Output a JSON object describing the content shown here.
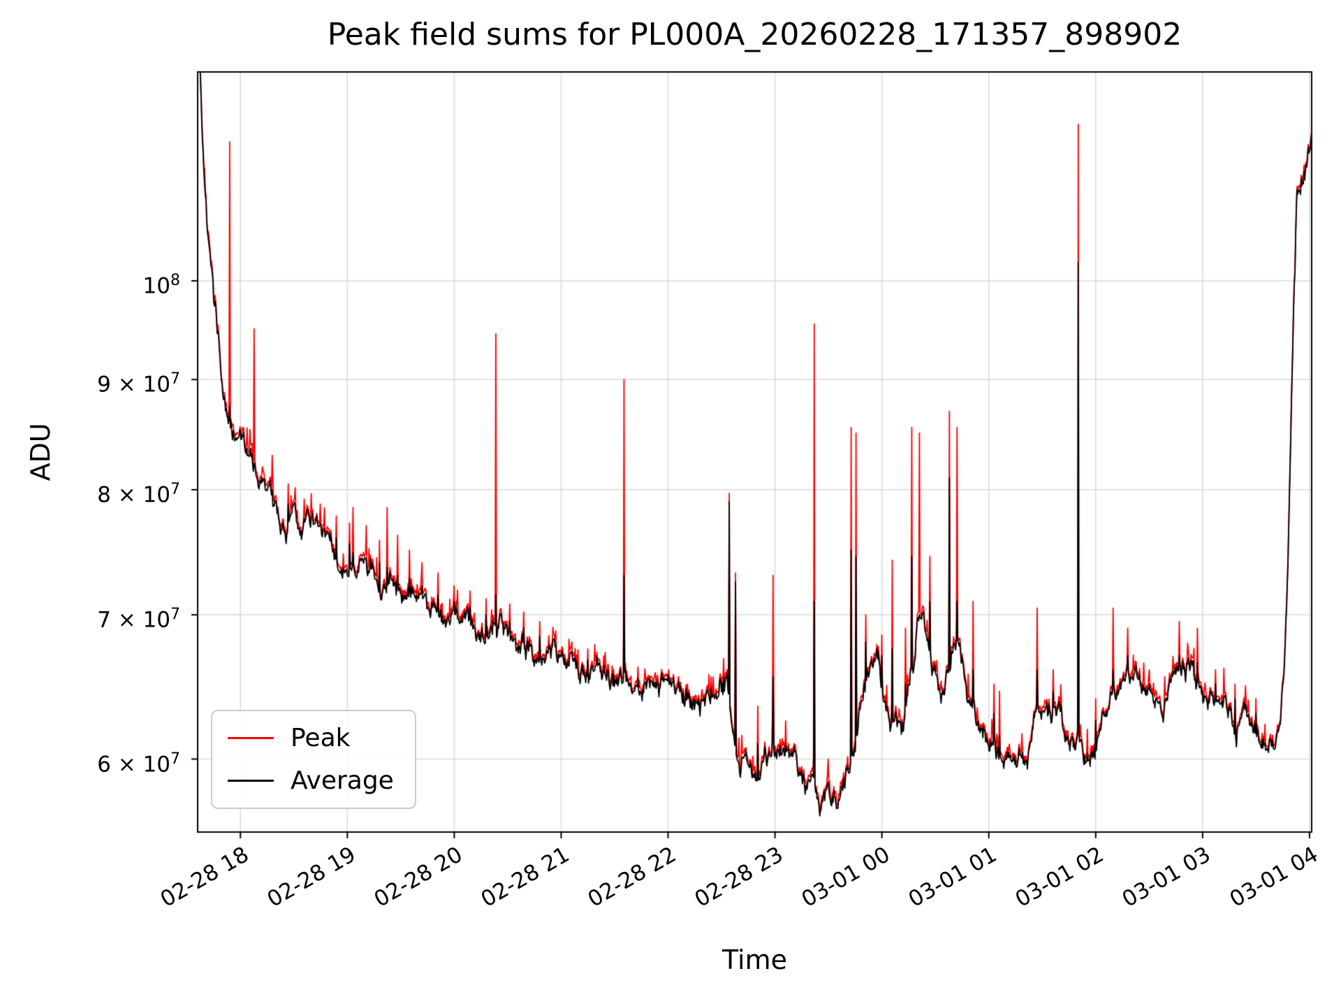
{
  "chart_data": {
    "type": "line",
    "title": "Peak field sums for PL000A_20260228_171357_898902",
    "xlabel": "Time",
    "ylabel": "ADU",
    "yscale": "log",
    "grid": true,
    "xlim": [
      17.6,
      28.02
    ],
    "ylim": [
      55500000.0,
      125000000.0
    ],
    "grid_color": "#d9d9d9",
    "series_colors": {
      "peak": "#ff0000",
      "average": "#000000"
    },
    "legend": {
      "position": "lower left",
      "entries": [
        {
          "name": "Peak",
          "color": "#ff0000"
        },
        {
          "name": "Average",
          "color": "#000000"
        }
      ]
    },
    "x_ticks": [
      {
        "v": 18,
        "label": "02-28 18"
      },
      {
        "v": 19,
        "label": "02-28 19"
      },
      {
        "v": 20,
        "label": "02-28 20"
      },
      {
        "v": 21,
        "label": "02-28 21"
      },
      {
        "v": 22,
        "label": "02-28 22"
      },
      {
        "v": 23,
        "label": "02-28 23"
      },
      {
        "v": 24,
        "label": "03-01 00"
      },
      {
        "v": 25,
        "label": "03-01 01"
      },
      {
        "v": 26,
        "label": "03-01 02"
      },
      {
        "v": 27,
        "label": "03-01 03"
      },
      {
        "v": 28,
        "label": "03-01 04"
      }
    ],
    "y_ticks": [
      {
        "v": 60000000.0,
        "base": "6 × 10",
        "exp": "7"
      },
      {
        "v": 70000000.0,
        "base": "7 × 10",
        "exp": "7"
      },
      {
        "v": 80000000.0,
        "base": "8 × 10",
        "exp": "7"
      },
      {
        "v": 90000000.0,
        "base": "9 × 10",
        "exp": "7"
      },
      {
        "v": 100000000.0,
        "base": "10",
        "exp": "8"
      }
    ],
    "average_anchors": [
      [
        17.6,
        135000000.0
      ],
      [
        17.63,
        123000000.0
      ],
      [
        17.66,
        113000000.0
      ],
      [
        17.7,
        105000000.0
      ],
      [
        17.75,
        98000000.0
      ],
      [
        17.81,
        92500000.0
      ],
      [
        17.88,
        87500000.0
      ],
      [
        17.96,
        84500000.0
      ],
      [
        18.05,
        82200000.0
      ],
      [
        18.15,
        80500000.0
      ],
      [
        18.27,
        79300000.0
      ],
      [
        18.39,
        78200000.0
      ],
      [
        18.52,
        77300000.0
      ],
      [
        18.66,
        76400000.0
      ],
      [
        18.8,
        75600000.0
      ],
      [
        18.94,
        74800000.0
      ],
      [
        19.08,
        74100000.0
      ],
      [
        19.22,
        73500000.0
      ],
      [
        19.36,
        72900000.0
      ],
      [
        19.51,
        72200000.0
      ],
      [
        19.66,
        71500000.0
      ],
      [
        19.81,
        70900000.0
      ],
      [
        19.96,
        70400000.0
      ],
      [
        20.11,
        69900000.0
      ],
      [
        20.26,
        69600000.0
      ],
      [
        20.41,
        69100000.0
      ],
      [
        20.56,
        68700000.0
      ],
      [
        20.71,
        68200000.0
      ],
      [
        20.86,
        67600000.0
      ],
      [
        21.01,
        67100000.0
      ],
      [
        21.16,
        66600000.0
      ],
      [
        21.31,
        66200000.0
      ],
      [
        21.46,
        65800000.0
      ],
      [
        21.61,
        65400000.0
      ],
      [
        21.76,
        65000000.0
      ],
      [
        21.91,
        64700000.0
      ],
      [
        22.06,
        64300000.0
      ],
      [
        22.21,
        64000000.0
      ],
      [
        22.34,
        63900000.0
      ],
      [
        22.45,
        64300000.0
      ],
      [
        22.55,
        64900000.0
      ],
      [
        22.61,
        63200000.0
      ],
      [
        22.67,
        60300000.0
      ],
      [
        22.75,
        59300000.0
      ],
      [
        22.85,
        59600000.0
      ],
      [
        22.94,
        60300000.0
      ],
      [
        23.0,
        60900000.0
      ],
      [
        23.06,
        60200000.0
      ],
      [
        23.13,
        59600000.0
      ],
      [
        23.21,
        58900000.0
      ],
      [
        23.29,
        58200000.0
      ],
      [
        23.38,
        57700000.0
      ],
      [
        23.47,
        57200000.0
      ],
      [
        23.55,
        57000000.0
      ],
      [
        23.63,
        57700000.0
      ],
      [
        23.69,
        59300000.0
      ],
      [
        23.75,
        61800000.0
      ],
      [
        23.81,
        64800000.0
      ],
      [
        23.89,
        66300000.0
      ],
      [
        23.97,
        65800000.0
      ],
      [
        24.05,
        64500000.0
      ],
      [
        24.13,
        62800000.0
      ],
      [
        24.19,
        61900000.0
      ],
      [
        24.26,
        64300000.0
      ],
      [
        24.33,
        68800000.0
      ],
      [
        24.39,
        69300000.0
      ],
      [
        24.47,
        66300000.0
      ],
      [
        24.55,
        64900000.0
      ],
      [
        24.61,
        65900000.0
      ],
      [
        24.67,
        68300000.0
      ],
      [
        24.73,
        66800000.0
      ],
      [
        24.81,
        64300000.0
      ],
      [
        24.91,
        62600000.0
      ],
      [
        25.01,
        61100000.0
      ],
      [
        25.13,
        60100000.0
      ],
      [
        25.23,
        59700000.0
      ],
      [
        25.33,
        61100000.0
      ],
      [
        25.43,
        62700000.0
      ],
      [
        25.51,
        63400000.0
      ],
      [
        25.59,
        62700000.0
      ],
      [
        25.69,
        61300000.0
      ],
      [
        25.79,
        60400000.0
      ],
      [
        25.87,
        59900000.0
      ],
      [
        25.96,
        60700000.0
      ],
      [
        26.05,
        61900000.0
      ],
      [
        26.13,
        63700000.0
      ],
      [
        26.21,
        65100000.0
      ],
      [
        26.31,
        65400000.0
      ],
      [
        26.41,
        64700000.0
      ],
      [
        26.51,
        63900000.0
      ],
      [
        26.59,
        63100000.0
      ],
      [
        26.67,
        62900000.0
      ],
      [
        26.75,
        64700000.0
      ],
      [
        26.83,
        65900000.0
      ],
      [
        26.91,
        65700000.0
      ],
      [
        27.01,
        64900000.0
      ],
      [
        27.11,
        64100000.0
      ],
      [
        27.21,
        63500000.0
      ],
      [
        27.33,
        62900000.0
      ],
      [
        27.45,
        62100000.0
      ],
      [
        27.57,
        61500000.0
      ],
      [
        27.65,
        61300000.0
      ],
      [
        27.71,
        62100000.0
      ],
      [
        27.76,
        65400000.0
      ],
      [
        27.8,
        74000000.0
      ],
      [
        27.84,
        93000000.0
      ],
      [
        27.88,
        109000000.0
      ],
      [
        27.92,
        113000000.0
      ],
      [
        27.97,
        114000000.0
      ],
      [
        28.02,
        117000000.0
      ]
    ],
    "spikes": [
      [
        17.9,
        116000000.0,
        87500000.0
      ],
      [
        18.13,
        95000000.0,
        81000000.0
      ],
      [
        18.3,
        83000000.0,
        80000000.0
      ],
      [
        18.45,
        80500000.0,
        78800000.0
      ],
      [
        18.6,
        79200000.0,
        77600000.0
      ],
      [
        18.75,
        78800000.0,
        76800000.0
      ],
      [
        18.9,
        77800000.0,
        76000000.0
      ],
      [
        19.02,
        77200000.0,
        75500000.0
      ],
      [
        19.05,
        78500000.0,
        74800000.0
      ],
      [
        19.18,
        77000000.0,
        74200000.0
      ],
      [
        19.3,
        75800000.0,
        74000000.0
      ],
      [
        19.37,
        78500000.0,
        73600000.0
      ],
      [
        19.47,
        76200000.0,
        73000000.0
      ],
      [
        19.58,
        75000000.0,
        72800000.0
      ],
      [
        19.7,
        74000000.0,
        72200000.0
      ],
      [
        19.85,
        73200000.0,
        71500000.0
      ],
      [
        20.0,
        72200000.0,
        71000000.0
      ],
      [
        20.15,
        71800000.0,
        70600000.0
      ],
      [
        20.3,
        71200000.0,
        70000000.0
      ],
      [
        20.39,
        94500000.0,
        71500000.0
      ],
      [
        20.52,
        70800000.0,
        69500000.0
      ],
      [
        20.65,
        70200000.0,
        69000000.0
      ],
      [
        20.8,
        69500000.0,
        68400000.0
      ],
      [
        20.95,
        68800000.0,
        67800000.0
      ],
      [
        21.1,
        68000000.0,
        67200000.0
      ],
      [
        21.25,
        67500000.0,
        66700000.0
      ],
      [
        21.4,
        67000000.0,
        66300000.0
      ],
      [
        21.59,
        90000000.0,
        73000000.0
      ],
      [
        21.72,
        66200000.0,
        65400000.0
      ],
      [
        21.88,
        65800000.0,
        65000000.0
      ],
      [
        22.03,
        65200000.0,
        64600000.0
      ],
      [
        22.18,
        65000000.0,
        64400000.0
      ],
      [
        22.4,
        65500000.0,
        64700000.0
      ],
      [
        22.52,
        66800000.0,
        65500000.0
      ],
      [
        22.57,
        79700000.0,
        79000000.0
      ],
      [
        22.63,
        73200000.0,
        72500000.0
      ],
      [
        22.84,
        63500000.0,
        61000000.0
      ],
      [
        22.98,
        73000000.0,
        65500000.0
      ],
      [
        23.1,
        62500000.0,
        61000000.0
      ],
      [
        23.37,
        95500000.0,
        71000000.0
      ],
      [
        23.5,
        60000000.0,
        58500000.0
      ],
      [
        23.71,
        85500000.0,
        75000000.0
      ],
      [
        23.76,
        85000000.0,
        74500000.0
      ],
      [
        23.85,
        70000000.0,
        68000000.0
      ],
      [
        24.0,
        68500000.0,
        67000000.0
      ],
      [
        24.1,
        74200000.0,
        67500000.0
      ],
      [
        24.22,
        69000000.0,
        65000000.0
      ],
      [
        24.28,
        85500000.0,
        74500000.0
      ],
      [
        24.35,
        85000000.0,
        70000000.0
      ],
      [
        24.45,
        74500000.0,
        71000000.0
      ],
      [
        24.63,
        87000000.0,
        81000000.0
      ],
      [
        24.7,
        85500000.0,
        71000000.0
      ],
      [
        24.85,
        71000000.0,
        66000000.0
      ],
      [
        25.05,
        65000000.0,
        63000000.0
      ],
      [
        25.1,
        64500000.0,
        61500000.0
      ],
      [
        25.45,
        70500000.0,
        66000000.0
      ],
      [
        25.6,
        66000000.0,
        64500000.0
      ],
      [
        25.84,
        118200000.0,
        102000000.0
      ],
      [
        26.0,
        64000000.0,
        62500000.0
      ],
      [
        26.16,
        70500000.0,
        66000000.0
      ],
      [
        26.3,
        69000000.0,
        67000000.0
      ],
      [
        26.5,
        66000000.0,
        65000000.0
      ],
      [
        26.78,
        69500000.0,
        67000000.0
      ],
      [
        26.95,
        69000000.0,
        66500000.0
      ],
      [
        27.12,
        66000000.0,
        65000000.0
      ],
      [
        27.3,
        65000000.0,
        64000000.0
      ],
      [
        27.5,
        64000000.0,
        63000000.0
      ]
    ],
    "noise": {
      "seed": 7,
      "walk": 0.018,
      "damp": 0.9,
      "jitter": 0.008,
      "burst_prob": 0.12,
      "burst_amp": 0.028,
      "base_gap": 0.0025
    }
  }
}
